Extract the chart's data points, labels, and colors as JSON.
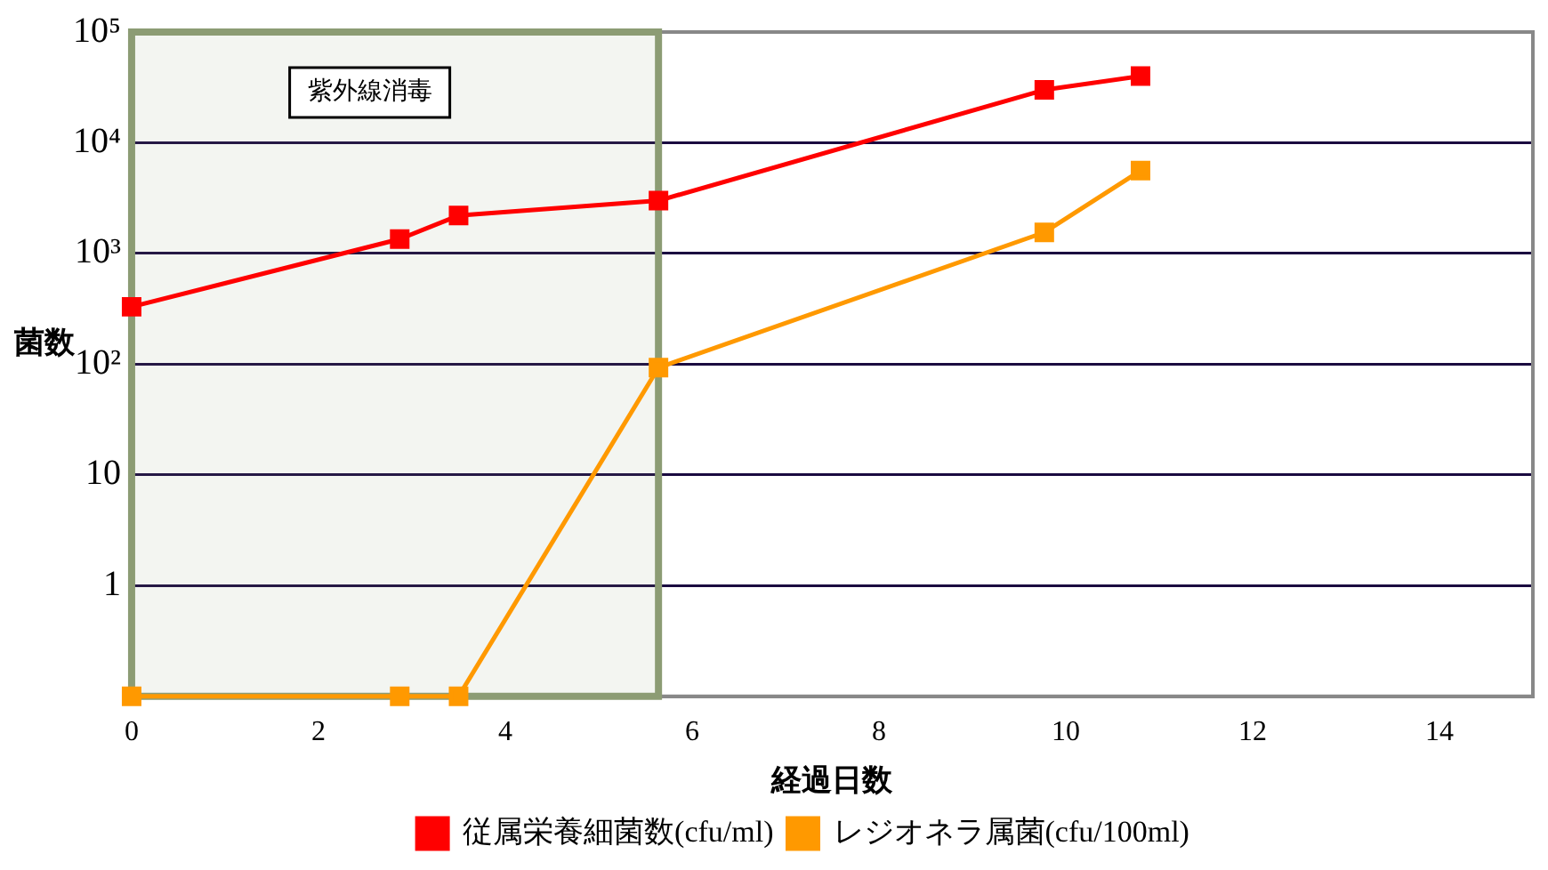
{
  "chart_data": {
    "type": "line",
    "xlabel": "経過日数",
    "ylabel": "菌数",
    "xlim": [
      0,
      15
    ],
    "xticks": [
      0,
      2,
      4,
      6,
      8,
      10,
      12,
      14
    ],
    "ylim": [
      0.1,
      100000
    ],
    "yticks": [
      {
        "value": 0.1,
        "label": null
      },
      1,
      10,
      {
        "value": 100,
        "label": "10²"
      },
      {
        "value": 1000,
        "label": "10³"
      },
      {
        "value": 10000,
        "label": "10⁴"
      },
      {
        "value": 100000,
        "label": "10⁵"
      }
    ],
    "log": "y",
    "grid": "y",
    "legend": "bottom",
    "marker": "square",
    "line_style": "solid",
    "bands": [
      {
        "axis": "x",
        "from": 0,
        "to": 5.64,
        "label": "紫外線消毒",
        "color": "#8c9c74"
      }
    ],
    "series": [
      {
        "name": "従属栄養細菌数(cfu/ml)",
        "color": "#ff0000",
        "x": [
          0,
          2.87,
          3.5,
          5.64,
          9.77,
          10.8
        ],
        "values": [
          330,
          1350,
          2200,
          3000,
          30000,
          40000
        ]
      },
      {
        "name": "レジオネラ属菌(cfu/100ml)",
        "color": "#ff9900",
        "x": [
          0,
          2.87,
          3.5,
          5.64,
          9.77,
          10.8
        ],
        "values": [
          0.1,
          0.1,
          0.1,
          93,
          1550,
          5600
        ]
      }
    ]
  }
}
